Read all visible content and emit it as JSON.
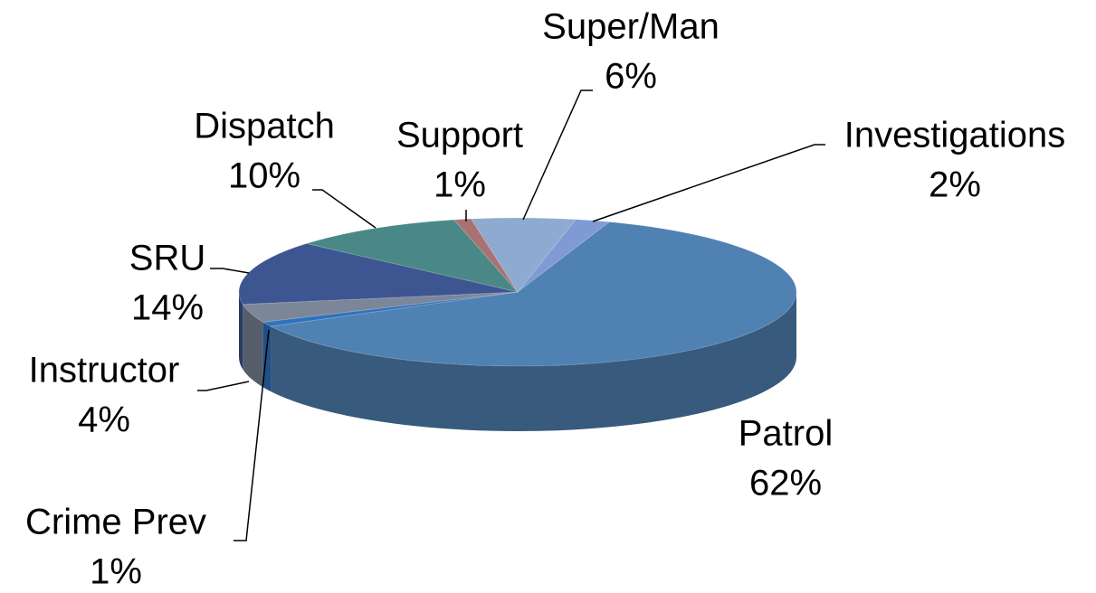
{
  "chart_data": {
    "type": "pie",
    "categories": [
      "Investigations",
      "Patrol",
      "Crime Prev",
      "Instructor",
      "SRU",
      "Dispatch",
      "Support",
      "Super/Man"
    ],
    "values": [
      2,
      62,
      1,
      4,
      14,
      10,
      1,
      6
    ],
    "value_labels": [
      "2%",
      "62%",
      "1%",
      "4%",
      "14%",
      "10%",
      "1%",
      "6%"
    ],
    "colors": [
      "#7f9ad4",
      "#4f81b3",
      "#2f72c0",
      "#7b8698",
      "#3d5591",
      "#4a8888",
      "#a87272",
      "#8eaad0"
    ]
  }
}
